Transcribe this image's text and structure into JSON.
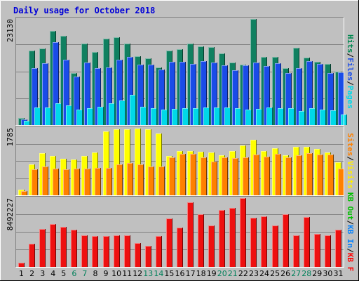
{
  "chart_data": [
    {
      "type": "bar",
      "title": "Daily usage for October 2018",
      "categories": [
        "1",
        "2",
        "3",
        "4",
        "5",
        "6",
        "7",
        "8",
        "9",
        "10",
        "11",
        "12",
        "13",
        "14",
        "15",
        "16",
        "17",
        "18",
        "19",
        "20",
        "21",
        "22",
        "23",
        "24",
        "25",
        "26",
        "27",
        "28",
        "29",
        "30",
        "31"
      ],
      "weekend_days": [
        "6",
        "7",
        "13",
        "14",
        "20",
        "21",
        "27",
        "28"
      ],
      "ymax_label": "23130",
      "ylim": [
        0,
        23130
      ],
      "grid": true,
      "legend_placement": "right",
      "legend": [
        {
          "name": "Pages",
          "color": "#00d8e8"
        },
        {
          "name": "Files",
          "color": "#2050e8"
        },
        {
          "name": "Hits",
          "color": "#008850"
        }
      ],
      "separator": "/",
      "series": [
        {
          "name": "Hits",
          "color": "#108060",
          "values": [
            1500,
            16200,
            16700,
            20600,
            19400,
            11300,
            17800,
            16000,
            18800,
            19200,
            17800,
            15000,
            14500,
            12500,
            16300,
            16600,
            17800,
            17200,
            17000,
            15600,
            13600,
            13200,
            23100,
            14800,
            14900,
            12400,
            16900,
            14700,
            13800,
            13300,
            11600
          ]
        },
        {
          "name": "Files",
          "color": "#1a4ce8",
          "values": [
            1200,
            12400,
            13500,
            18000,
            14200,
            10500,
            13700,
            12400,
            12600,
            14200,
            14900,
            13100,
            13100,
            12100,
            13800,
            13800,
            13300,
            14000,
            13700,
            13000,
            12000,
            13000,
            13600,
            12800,
            13500,
            11400,
            12400,
            13900,
            13300,
            11400,
            11500
          ]
        },
        {
          "name": "Pages",
          "color": "#00d8e8",
          "values": [
            900,
            3800,
            3800,
            4700,
            4300,
            3300,
            3600,
            4000,
            4700,
            5300,
            6600,
            4000,
            3600,
            3400,
            3500,
            3600,
            3700,
            3900,
            3900,
            3800,
            3700,
            3400,
            3500,
            3900,
            3600,
            3700,
            3100,
            3700,
            3300,
            3200,
            2300
          ]
        }
      ]
    },
    {
      "type": "bar",
      "categories": [
        "1",
        "2",
        "3",
        "4",
        "5",
        "6",
        "7",
        "8",
        "9",
        "10",
        "11",
        "12",
        "13",
        "14",
        "15",
        "16",
        "17",
        "18",
        "19",
        "20",
        "21",
        "22",
        "23",
        "24",
        "25",
        "26",
        "27",
        "28",
        "29",
        "30",
        "31"
      ],
      "ymax_label": "1785",
      "ylim": [
        0,
        1785
      ],
      "grid": true,
      "legend": [
        {
          "name": "Visits",
          "color": "#ffee00"
        },
        {
          "name": "Sites",
          "color": "#ff8000"
        }
      ],
      "separator": "/",
      "series": [
        {
          "name": "Visits",
          "color": "#ffff00",
          "values": [
            150,
            820,
            1120,
            1040,
            960,
            940,
            1040,
            1140,
            1700,
            1740,
            1750,
            1760,
            1740,
            1640,
            1040,
            1180,
            1180,
            1150,
            1140,
            1060,
            1180,
            1320,
            1460,
            1180,
            1240,
            1060,
            1280,
            1280,
            1220,
            1140,
            880
          ]
        },
        {
          "name": "Sites",
          "color": "#ff8000",
          "values": [
            120,
            680,
            770,
            710,
            690,
            710,
            700,
            720,
            720,
            820,
            860,
            820,
            760,
            760,
            1000,
            1100,
            1100,
            1000,
            900,
            1000,
            980,
            1000,
            1080,
            1020,
            1100,
            1000,
            1060,
            1110,
            1080,
            1080,
            710
          ]
        }
      ]
    },
    {
      "type": "bar",
      "categories": [
        "1",
        "2",
        "3",
        "4",
        "5",
        "6",
        "7",
        "8",
        "9",
        "10",
        "11",
        "12",
        "13",
        "14",
        "15",
        "16",
        "17",
        "18",
        "19",
        "20",
        "21",
        "22",
        "23",
        "24",
        "25",
        "26",
        "27",
        "28",
        "29",
        "30",
        "31"
      ],
      "ymax_label": "8492227",
      "ylim": [
        0,
        8492227
      ],
      "grid": true,
      "legend": [
        {
          "name": "KB F",
          "color": "#ff0000"
        },
        {
          "name": "KB In",
          "color": "#0080ff"
        },
        {
          "name": "KB Out",
          "color": "#00c000"
        }
      ],
      "separator": "/",
      "series": [
        {
          "name": "KB F",
          "color": "#ee1010",
          "values": [
            560000,
            2870000,
            4720000,
            5320000,
            4910000,
            4560000,
            3880000,
            3850000,
            3840000,
            3930000,
            3910000,
            2910000,
            2590000,
            3780000,
            5950000,
            4890000,
            8000000,
            6500000,
            5090000,
            7000000,
            7240000,
            8480000,
            6050000,
            6210000,
            5100000,
            6540000,
            3920000,
            6120000,
            4050000,
            3880000,
            4610000
          ]
        }
      ]
    }
  ]
}
